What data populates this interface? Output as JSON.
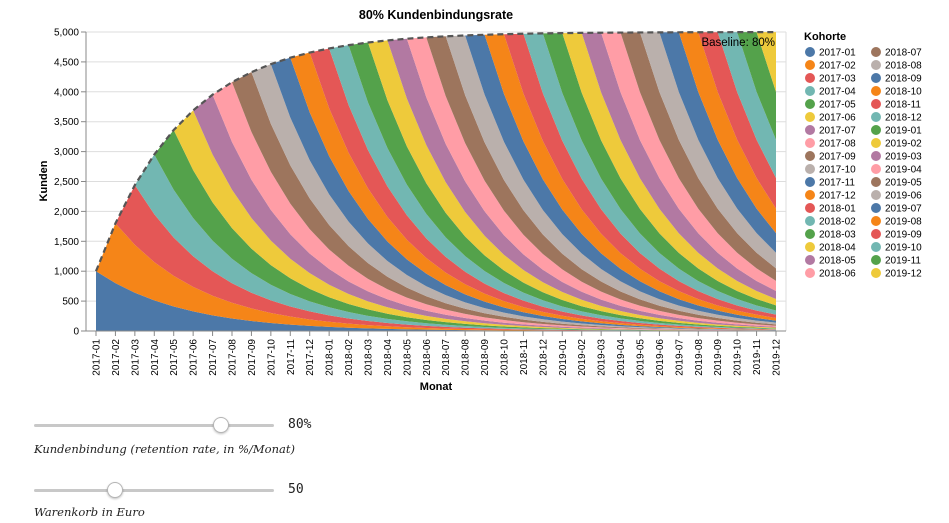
{
  "chart_data": {
    "type": "area",
    "stacked": true,
    "title": "80% Kundenbindungsrate",
    "xlabel": "Monat",
    "ylabel": "Kunden",
    "ylim": [
      0,
      5000
    ],
    "yticks": [
      0,
      500,
      1000,
      1500,
      2000,
      2500,
      3000,
      3500,
      4000,
      4500,
      5000
    ],
    "ytick_labels": [
      "0",
      "500",
      "1,000",
      "1,500",
      "2,000",
      "2,500",
      "3,000",
      "3,500",
      "4,000",
      "4,500",
      "5,000"
    ],
    "grid": true,
    "months": [
      "2017-01",
      "2017-02",
      "2017-03",
      "2017-04",
      "2017-05",
      "2017-06",
      "2017-07",
      "2017-08",
      "2017-09",
      "2017-10",
      "2017-11",
      "2017-12",
      "2018-01",
      "2018-02",
      "2018-03",
      "2018-04",
      "2018-05",
      "2018-06",
      "2018-07",
      "2018-08",
      "2018-09",
      "2018-10",
      "2018-11",
      "2018-12",
      "2019-01",
      "2019-02",
      "2019-03",
      "2019-04",
      "2019-05",
      "2019-06",
      "2019-07",
      "2019-08",
      "2019-09",
      "2019-10",
      "2019-11",
      "2019-12"
    ],
    "cohort_start_customers": 1000,
    "retention_rate": 0.8,
    "baseline_label": "Baseline: 80%",
    "baseline_max": 5000,
    "legend": {
      "title": "Kohorte",
      "position": "right",
      "entries": [
        "2017-01",
        "2017-02",
        "2017-03",
        "2017-04",
        "2017-05",
        "2017-06",
        "2017-07",
        "2017-08",
        "2017-09",
        "2017-10",
        "2017-11",
        "2017-12",
        "2018-01",
        "2018-02",
        "2018-03",
        "2018-04",
        "2018-05",
        "2018-06",
        "2018-07",
        "2018-08",
        "2018-09",
        "2018-10",
        "2018-11",
        "2018-12",
        "2019-01",
        "2019-02",
        "2019-03",
        "2019-04",
        "2019-05",
        "2019-06",
        "2019-07",
        "2019-08",
        "2019-09",
        "2019-10",
        "2019-11",
        "2019-12"
      ]
    },
    "palette": [
      "#4c78a8",
      "#f58518",
      "#e45756",
      "#72b7b2",
      "#54a24b",
      "#eeca3b",
      "#b279a2",
      "#ff9da6",
      "#9d755d",
      "#bab0ac"
    ]
  },
  "controls": {
    "retention": {
      "value": 0.8,
      "display": "80%",
      "label": "Kundenbindung (retention rate, in %/Monat)"
    },
    "basket": {
      "value": 50,
      "min": 0,
      "max": 150,
      "display": "50",
      "label": "Warenkorb in Euro"
    }
  }
}
